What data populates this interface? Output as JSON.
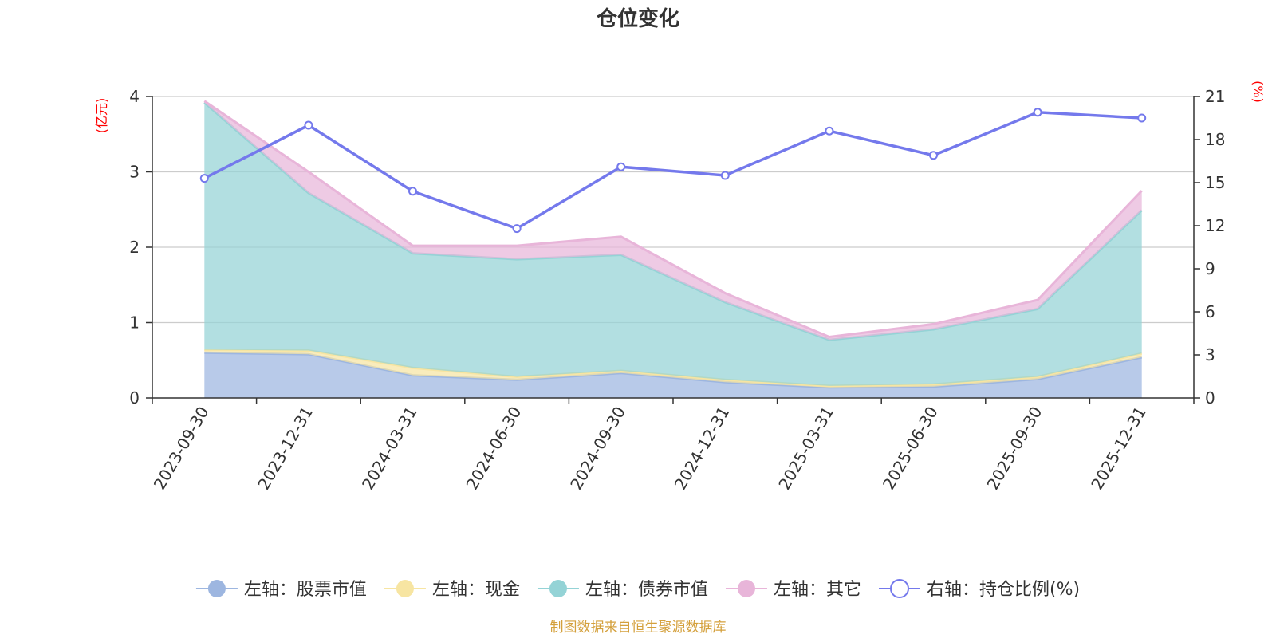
{
  "chart_data": {
    "type": "area",
    "title": "仓位变化",
    "left_unit": "(亿元)",
    "right_unit": "(%)",
    "left_ylim": [
      0,
      4
    ],
    "left_ticks": [
      0,
      1,
      2,
      3,
      4
    ],
    "right_ylim": [
      0,
      21
    ],
    "right_ticks": [
      0,
      3,
      6,
      9,
      12,
      15,
      18,
      21
    ],
    "categories": [
      "2023-09-30",
      "2023-12-31",
      "2024-03-31",
      "2024-06-30",
      "2024-09-30",
      "2024-12-31",
      "2025-03-31",
      "2025-06-30",
      "2025-09-30",
      "2025-12-31"
    ],
    "stacked_series": [
      {
        "name": "左轴：股票市值",
        "color": "#9db6e0",
        "values": [
          0.6,
          0.58,
          0.3,
          0.24,
          0.33,
          0.21,
          0.14,
          0.15,
          0.25,
          0.54
        ]
      },
      {
        "name": "左轴：现金",
        "color": "#f7e5a2",
        "values": [
          0.04,
          0.05,
          0.1,
          0.04,
          0.03,
          0.03,
          0.02,
          0.03,
          0.03,
          0.05
        ]
      },
      {
        "name": "左轴：债券市值",
        "color": "#94d3d6",
        "values": [
          3.28,
          2.09,
          1.52,
          1.56,
          1.54,
          1.03,
          0.61,
          0.73,
          0.9,
          1.9
        ]
      },
      {
        "name": "左轴：其它",
        "color": "#e8b5d9",
        "values": [
          0.02,
          0.28,
          0.1,
          0.18,
          0.24,
          0.12,
          0.04,
          0.07,
          0.12,
          0.26
        ]
      }
    ],
    "line_series": {
      "name": "右轴：持仓比例(%)",
      "color": "#7479ec",
      "values": [
        15.3,
        19.0,
        14.4,
        11.8,
        16.1,
        15.5,
        18.6,
        16.9,
        19.9,
        19.5
      ]
    },
    "source_note": "制图数据来自恒生聚源数据库",
    "source_color": "#d4a03c",
    "unit_color": "#ff0000"
  }
}
